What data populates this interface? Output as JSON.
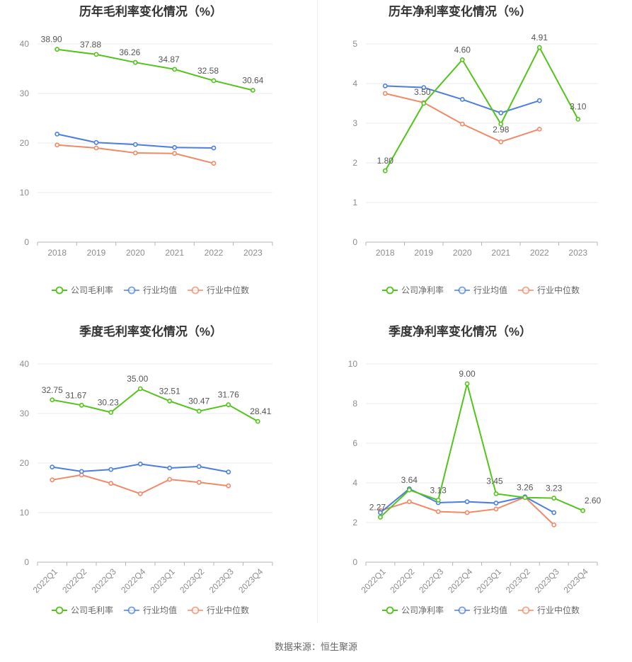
{
  "source_label": "数据来源：恒生聚源",
  "colors": {
    "company": "#52c41a",
    "avg": "#4a7ee0",
    "median": "#f08a66"
  },
  "chart_data": [
    {
      "type": "line",
      "title": "历年毛利率变化情况（%）",
      "categories": [
        "2018",
        "2019",
        "2020",
        "2021",
        "2022",
        "2023"
      ],
      "ylim": [
        0,
        40
      ],
      "yticks": [
        0,
        10,
        20,
        30,
        40
      ],
      "grid": true,
      "legend_position": "bottom",
      "rotate_xticks": false,
      "series": [
        {
          "name": "公司毛利率",
          "key": "company",
          "values": [
            38.9,
            37.88,
            36.26,
            34.87,
            32.58,
            30.64
          ],
          "labels": [
            "38.90",
            "37.88",
            "36.26",
            "34.87",
            "32.58",
            "30.64"
          ]
        },
        {
          "name": "行业均值",
          "key": "avg",
          "values": [
            21.8,
            20.1,
            19.7,
            19.1,
            19.0,
            null
          ],
          "labels": []
        },
        {
          "name": "行业中位数",
          "key": "median",
          "values": [
            19.6,
            19.0,
            18.0,
            17.9,
            15.9,
            null
          ],
          "labels": []
        }
      ]
    },
    {
      "type": "line",
      "title": "历年净利率变化情况（%）",
      "categories": [
        "2018",
        "2019",
        "2020",
        "2021",
        "2022",
        "2023"
      ],
      "ylim": [
        0,
        5
      ],
      "yticks": [
        0,
        1,
        2,
        3,
        4,
        5
      ],
      "grid": true,
      "legend_position": "bottom",
      "rotate_xticks": false,
      "series": [
        {
          "name": "公司净利率",
          "key": "company",
          "values": [
            1.8,
            3.5,
            4.6,
            2.98,
            4.91,
            3.1
          ],
          "labels": [
            "1.80",
            "3.50",
            "4.60",
            "2.98",
            "4.91",
            "3.10"
          ]
        },
        {
          "name": "行业均值",
          "key": "avg",
          "values": [
            3.94,
            3.9,
            3.6,
            3.26,
            3.57,
            null
          ],
          "labels": []
        },
        {
          "name": "行业中位数",
          "key": "median",
          "values": [
            3.75,
            3.52,
            2.98,
            2.53,
            2.85,
            null
          ],
          "labels": []
        }
      ]
    },
    {
      "type": "line",
      "title": "季度毛利率变化情况（%）",
      "categories": [
        "2022Q1",
        "2022Q2",
        "2022Q3",
        "2022Q4",
        "2023Q1",
        "2023Q2",
        "2023Q3",
        "2023Q4"
      ],
      "ylim": [
        0,
        40
      ],
      "yticks": [
        0,
        10,
        20,
        30,
        40
      ],
      "grid": true,
      "legend_position": "bottom",
      "rotate_xticks": true,
      "series": [
        {
          "name": "公司毛利率",
          "key": "company",
          "values": [
            32.75,
            31.67,
            30.23,
            35.0,
            32.51,
            30.47,
            31.76,
            28.41
          ],
          "labels": [
            "32.75",
            "31.67",
            "30.23",
            "35.00",
            "32.51",
            "30.47",
            "31.76",
            "28.41"
          ]
        },
        {
          "name": "行业均值",
          "key": "avg",
          "values": [
            19.2,
            18.3,
            18.7,
            19.8,
            19.0,
            19.3,
            18.2,
            null
          ],
          "labels": []
        },
        {
          "name": "行业中位数",
          "key": "median",
          "values": [
            16.6,
            17.6,
            15.9,
            13.8,
            16.7,
            16.1,
            15.4,
            null
          ],
          "labels": []
        }
      ]
    },
    {
      "type": "line",
      "title": "季度净利率变化情况（%）",
      "categories": [
        "2022Q1",
        "2022Q2",
        "2022Q3",
        "2022Q4",
        "2023Q1",
        "2023Q2",
        "2023Q3",
        "2023Q4"
      ],
      "ylim": [
        0,
        10
      ],
      "yticks": [
        0,
        2,
        4,
        6,
        8,
        10
      ],
      "grid": true,
      "legend_position": "bottom",
      "rotate_xticks": true,
      "series": [
        {
          "name": "公司净利率",
          "key": "company",
          "values": [
            2.27,
            3.64,
            3.13,
            9.0,
            3.45,
            3.26,
            3.23,
            2.6
          ],
          "labels": [
            "2.27",
            "3.64",
            "3.13",
            "9.00",
            "3.45",
            "3.26",
            "3.23",
            "2.60"
          ]
        },
        {
          "name": "行业均值",
          "key": "avg",
          "values": [
            2.5,
            3.7,
            3.0,
            3.05,
            2.98,
            3.3,
            2.5,
            null
          ],
          "labels": []
        },
        {
          "name": "行业中位数",
          "key": "median",
          "values": [
            2.6,
            3.05,
            2.55,
            2.5,
            2.68,
            3.28,
            1.88,
            null
          ],
          "labels": []
        }
      ]
    }
  ]
}
